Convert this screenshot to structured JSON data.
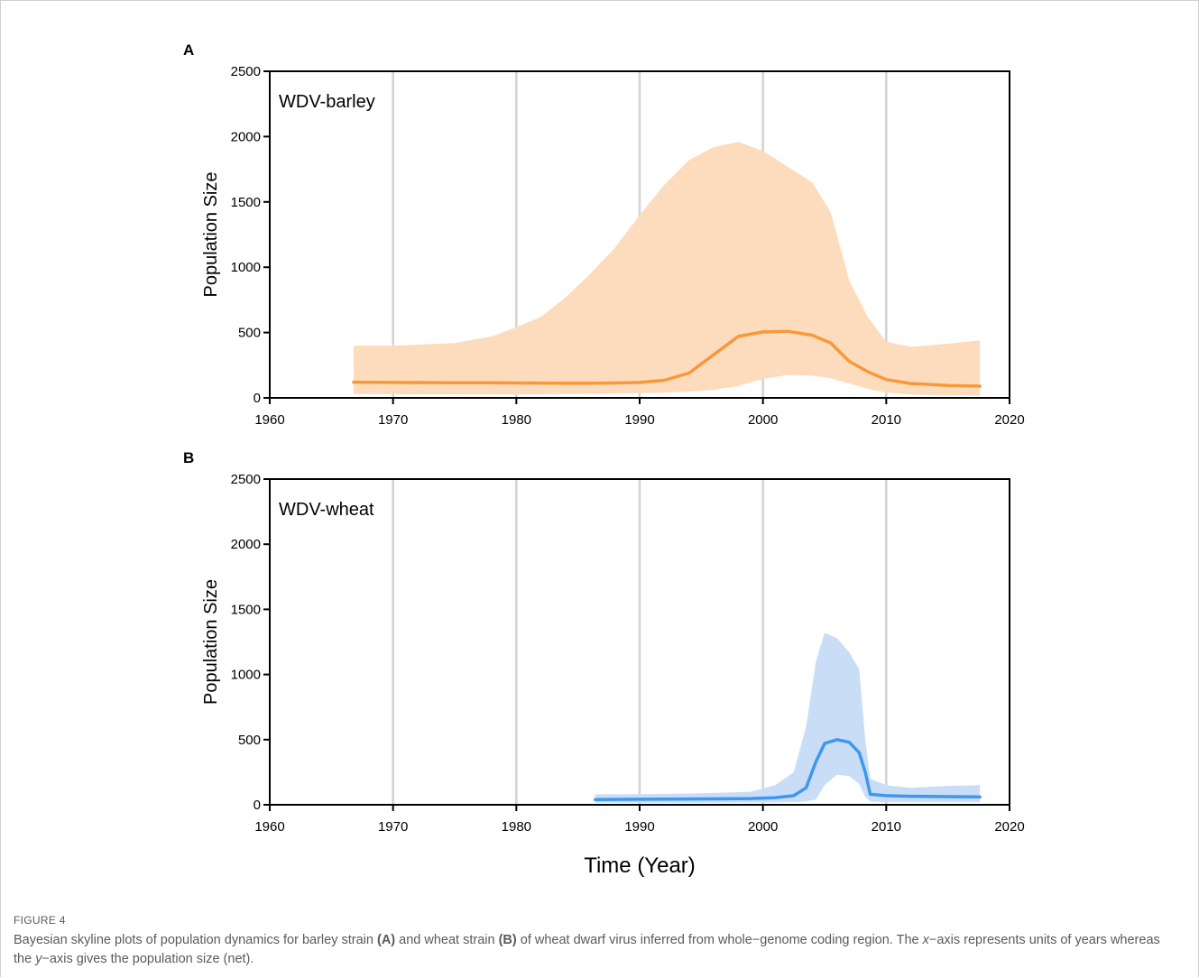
{
  "chart_data": [
    {
      "type": "area",
      "panel_label": "A",
      "title": "WDV-barley",
      "xlabel": "",
      "ylabel": "Population Size",
      "xlim": [
        1960,
        2020
      ],
      "ylim": [
        0,
        2500
      ],
      "x_ticks": [
        1960,
        1970,
        1980,
        1990,
        2000,
        2010,
        2020
      ],
      "y_ticks": [
        0,
        500,
        1000,
        1500,
        2000,
        2500
      ],
      "grid": "vertical lines at each x tick",
      "colors": {
        "band": "#fddcbd",
        "line": "#f7993a"
      },
      "series": [
        {
          "values": [
            [
              1966.8,
              400,
              120,
              30
            ],
            [
              1970,
              400,
              118,
              28
            ],
            [
              1975,
              420,
              116,
              27
            ],
            [
              1978,
              470,
              115,
              27
            ],
            [
              1980,
              540,
              114,
              27
            ],
            [
              1982,
              620,
              113,
              28
            ],
            [
              1984,
              770,
              112,
              30
            ],
            [
              1986,
              950,
              112,
              32
            ],
            [
              1988,
              1150,
              114,
              34
            ],
            [
              1990,
              1400,
              118,
              36
            ],
            [
              1992,
              1630,
              135,
              40
            ],
            [
              1994,
              1820,
              190,
              48
            ],
            [
              1996,
              1920,
              330,
              60
            ],
            [
              1998,
              1960,
              470,
              90
            ],
            [
              2000,
              1890,
              505,
              145
            ],
            [
              2002,
              1770,
              510,
              175
            ],
            [
              2004,
              1650,
              480,
              170
            ],
            [
              2005.5,
              1420,
              420,
              150
            ],
            [
              2007,
              900,
              280,
              110
            ],
            [
              2008.5,
              620,
              200,
              70
            ],
            [
              2010,
              430,
              140,
              40
            ],
            [
              2012,
              390,
              110,
              25
            ],
            [
              2015,
              415,
              95,
              18
            ],
            [
              2017.6,
              440,
              90,
              15
            ]
          ]
        }
      ]
    },
    {
      "type": "area",
      "panel_label": "B",
      "title": "WDV-wheat",
      "xlabel": "Time (Year)",
      "ylabel": "Population Size",
      "xlim": [
        1960,
        2020
      ],
      "ylim": [
        0,
        2500
      ],
      "x_ticks": [
        1960,
        1970,
        1980,
        1990,
        2000,
        2010,
        2020
      ],
      "y_ticks": [
        0,
        500,
        1000,
        1500,
        2000,
        2500
      ],
      "grid": "vertical lines at each x tick",
      "colors": {
        "band": "#c9ddf7",
        "line": "#3f97ee"
      },
      "series": [
        {
          "values": [
            [
              1986.4,
              80,
              40,
              15
            ],
            [
              1990,
              82,
              42,
              15
            ],
            [
              1995,
              88,
              45,
              16
            ],
            [
              1999,
              100,
              48,
              17
            ],
            [
              2001,
              150,
              55,
              18
            ],
            [
              2002.5,
              250,
              70,
              20
            ],
            [
              2003.5,
              600,
              130,
              25
            ],
            [
              2004.3,
              1100,
              330,
              40
            ],
            [
              2005,
              1320,
              470,
              150
            ],
            [
              2006,
              1280,
              500,
              230
            ],
            [
              2007,
              1170,
              480,
              220
            ],
            [
              2007.8,
              1040,
              400,
              160
            ],
            [
              2008.3,
              500,
              250,
              60
            ],
            [
              2008.7,
              200,
              80,
              25
            ],
            [
              2010,
              150,
              70,
              20
            ],
            [
              2012,
              130,
              65,
              20
            ],
            [
              2015,
              145,
              62,
              20
            ],
            [
              2017.6,
              150,
              60,
              20
            ]
          ]
        }
      ]
    }
  ],
  "caption": {
    "label": "FIGURE 4",
    "text_parts": [
      {
        "t": "Bayesian skyline plots of population dynamics for barley strain ",
        "b": false
      },
      {
        "t": "(A)",
        "b": true
      },
      {
        "t": " and wheat strain ",
        "b": false
      },
      {
        "t": "(B)",
        "b": true
      },
      {
        "t": " of wheat dwarf virus inferred from whole−genome coding region. The ",
        "b": false
      },
      {
        "t": "x",
        "i": true
      },
      {
        "t": "−axis represents units of years whereas the ",
        "b": false
      },
      {
        "t": "y",
        "i": true
      },
      {
        "t": "−axis gives the population size (net).",
        "b": false
      }
    ]
  }
}
